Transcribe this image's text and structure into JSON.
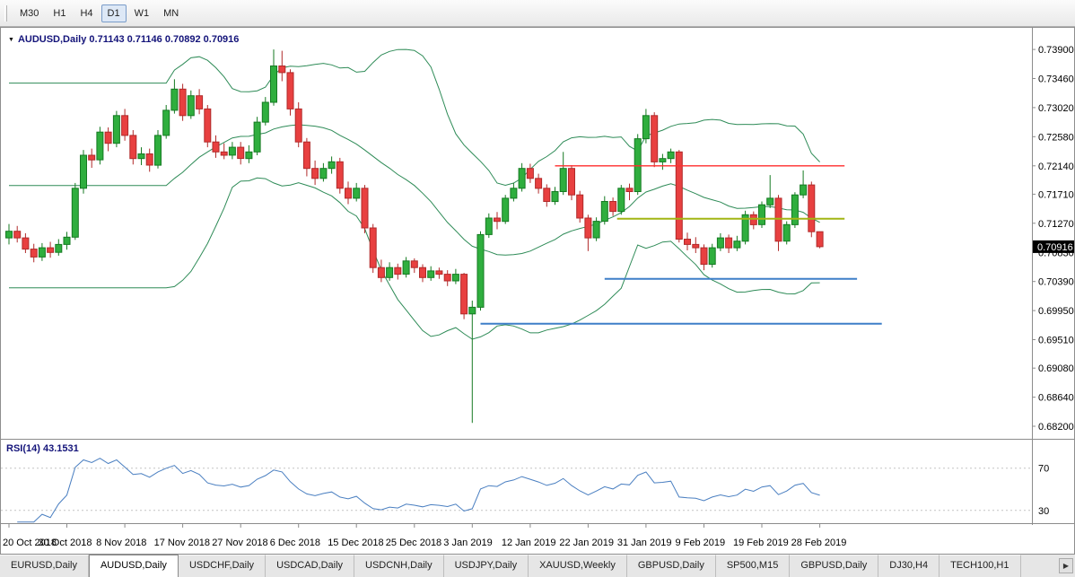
{
  "icons": {
    "chart_dropdown": "▼",
    "scroll_right": "▶"
  },
  "toolbar": {
    "timeframes": [
      {
        "label": "M30",
        "active": false
      },
      {
        "label": "H1",
        "active": false
      },
      {
        "label": "H4",
        "active": false
      },
      {
        "label": "D1",
        "active": true
      },
      {
        "label": "W1",
        "active": false
      },
      {
        "label": "MN",
        "active": false
      }
    ]
  },
  "chart_data": {
    "type": "candlestick",
    "title": "AUDUSD,Daily",
    "ohlc_readout": "0.71143 0.71146 0.70892 0.70916",
    "y_range": {
      "max": 0.742,
      "min": 0.6801
    },
    "y_ticks": [
      "0.73900",
      "0.73460",
      "0.73020",
      "0.72580",
      "0.72140",
      "0.71710",
      "0.71270",
      "0.70830",
      "0.70390",
      "0.69950",
      "0.69510",
      "0.69080",
      "0.68640",
      "0.68200"
    ],
    "x_labels": [
      {
        "i": 0,
        "label": "20 Oct 2018"
      },
      {
        "i": 7,
        "label": "30 Oct 2018"
      },
      {
        "i": 14,
        "label": "8 Nov 2018"
      },
      {
        "i": 21,
        "label": "17 Nov 2018"
      },
      {
        "i": 28,
        "label": "27 Nov 2018"
      },
      {
        "i": 35,
        "label": "6 Dec 2018"
      },
      {
        "i": 42,
        "label": "15 Dec 2018"
      },
      {
        "i": 49,
        "label": "25 Dec 2018"
      },
      {
        "i": 56,
        "label": "3 Jan 2019"
      },
      {
        "i": 63,
        "label": "12 Jan 2019"
      },
      {
        "i": 70,
        "label": "22 Jan 2019"
      },
      {
        "i": 77,
        "label": "31 Jan 2019"
      },
      {
        "i": 84,
        "label": "9 Feb 2019"
      },
      {
        "i": 91,
        "label": "19 Feb 2019"
      },
      {
        "i": 98,
        "label": "28 Feb 2019"
      }
    ],
    "candles": [
      [
        0.7105,
        0.7126,
        0.7095,
        0.7115
      ],
      [
        0.7115,
        0.7123,
        0.7098,
        0.7105
      ],
      [
        0.7105,
        0.7112,
        0.7082,
        0.7088
      ],
      [
        0.7088,
        0.7096,
        0.7068,
        0.7076
      ],
      [
        0.7076,
        0.7097,
        0.707,
        0.709
      ],
      [
        0.709,
        0.7099,
        0.7075,
        0.7083
      ],
      [
        0.7083,
        0.7103,
        0.7078,
        0.7095
      ],
      [
        0.7095,
        0.7114,
        0.7087,
        0.7106
      ],
      [
        0.7106,
        0.7188,
        0.7102,
        0.718
      ],
      [
        0.718,
        0.7238,
        0.7172,
        0.723
      ],
      [
        0.723,
        0.724,
        0.7211,
        0.7223
      ],
      [
        0.7223,
        0.7273,
        0.7216,
        0.7265
      ],
      [
        0.7265,
        0.7272,
        0.7236,
        0.7248
      ],
      [
        0.7248,
        0.7297,
        0.7242,
        0.729
      ],
      [
        0.729,
        0.73,
        0.7252,
        0.726
      ],
      [
        0.726,
        0.7268,
        0.7216,
        0.7225
      ],
      [
        0.7225,
        0.7242,
        0.7215,
        0.7232
      ],
      [
        0.7232,
        0.724,
        0.7205,
        0.7215
      ],
      [
        0.7215,
        0.7268,
        0.721,
        0.726
      ],
      [
        0.726,
        0.7306,
        0.7255,
        0.7298
      ],
      [
        0.7298,
        0.7345,
        0.7293,
        0.733
      ],
      [
        0.733,
        0.7338,
        0.7282,
        0.729
      ],
      [
        0.729,
        0.7328,
        0.7285,
        0.732
      ],
      [
        0.732,
        0.733,
        0.7292,
        0.73
      ],
      [
        0.73,
        0.7306,
        0.7242,
        0.725
      ],
      [
        0.725,
        0.726,
        0.7226,
        0.7235
      ],
      [
        0.7235,
        0.7248,
        0.7224,
        0.723
      ],
      [
        0.723,
        0.725,
        0.7224,
        0.7242
      ],
      [
        0.7242,
        0.725,
        0.7216,
        0.7225
      ],
      [
        0.7225,
        0.7245,
        0.7218,
        0.7235
      ],
      [
        0.7235,
        0.7288,
        0.723,
        0.728
      ],
      [
        0.728,
        0.7318,
        0.7275,
        0.731
      ],
      [
        0.731,
        0.739,
        0.7305,
        0.7365
      ],
      [
        0.7365,
        0.7388,
        0.7342,
        0.7355
      ],
      [
        0.7355,
        0.736,
        0.729,
        0.73
      ],
      [
        0.73,
        0.731,
        0.7242,
        0.725
      ],
      [
        0.725,
        0.7256,
        0.7198,
        0.721
      ],
      [
        0.721,
        0.7222,
        0.7185,
        0.7195
      ],
      [
        0.7195,
        0.7218,
        0.719,
        0.721
      ],
      [
        0.721,
        0.7228,
        0.7202,
        0.722
      ],
      [
        0.722,
        0.7226,
        0.7172,
        0.718
      ],
      [
        0.718,
        0.719,
        0.7156,
        0.7165
      ],
      [
        0.7165,
        0.7188,
        0.716,
        0.718
      ],
      [
        0.718,
        0.7185,
        0.7112,
        0.712
      ],
      [
        0.712,
        0.7126,
        0.7052,
        0.706
      ],
      [
        0.706,
        0.7072,
        0.7038,
        0.7045
      ],
      [
        0.7045,
        0.7068,
        0.704,
        0.706
      ],
      [
        0.706,
        0.7066,
        0.7042,
        0.705
      ],
      [
        0.705,
        0.7076,
        0.7045,
        0.707
      ],
      [
        0.707,
        0.7074,
        0.7052,
        0.706
      ],
      [
        0.706,
        0.7065,
        0.7038,
        0.7045
      ],
      [
        0.7045,
        0.7062,
        0.704,
        0.7055
      ],
      [
        0.7055,
        0.706,
        0.7043,
        0.705
      ],
      [
        0.705,
        0.7056,
        0.7032,
        0.704
      ],
      [
        0.704,
        0.7058,
        0.7035,
        0.705
      ],
      [
        0.705,
        0.7052,
        0.6982,
        0.699
      ],
      [
        0.699,
        0.701,
        0.6825,
        0.7
      ],
      [
        0.7,
        0.7115,
        0.6995,
        0.711
      ],
      [
        0.711,
        0.7142,
        0.7105,
        0.7135
      ],
      [
        0.7135,
        0.7144,
        0.7118,
        0.713
      ],
      [
        0.713,
        0.717,
        0.7126,
        0.7165
      ],
      [
        0.7165,
        0.7188,
        0.716,
        0.718
      ],
      [
        0.718,
        0.7218,
        0.7175,
        0.721
      ],
      [
        0.721,
        0.7217,
        0.7188,
        0.7195
      ],
      [
        0.7195,
        0.7202,
        0.7172,
        0.718
      ],
      [
        0.718,
        0.7186,
        0.7152,
        0.716
      ],
      [
        0.716,
        0.7182,
        0.7155,
        0.7175
      ],
      [
        0.7175,
        0.7235,
        0.717,
        0.721
      ],
      [
        0.721,
        0.7215,
        0.7162,
        0.717
      ],
      [
        0.717,
        0.7176,
        0.7128,
        0.7135
      ],
      [
        0.7135,
        0.714,
        0.7085,
        0.7105
      ],
      [
        0.7105,
        0.7136,
        0.71,
        0.713
      ],
      [
        0.713,
        0.7168,
        0.7125,
        0.716
      ],
      [
        0.716,
        0.7166,
        0.7138,
        0.7145
      ],
      [
        0.7145,
        0.7185,
        0.714,
        0.718
      ],
      [
        0.718,
        0.7187,
        0.7162,
        0.7175
      ],
      [
        0.7175,
        0.7262,
        0.717,
        0.7255
      ],
      [
        0.7255,
        0.73,
        0.7248,
        0.729
      ],
      [
        0.729,
        0.7295,
        0.7212,
        0.722
      ],
      [
        0.722,
        0.7232,
        0.7208,
        0.7225
      ],
      [
        0.7225,
        0.724,
        0.7218,
        0.7235
      ],
      [
        0.7235,
        0.7238,
        0.7098,
        0.7103
      ],
      [
        0.7103,
        0.7113,
        0.7086,
        0.7095
      ],
      [
        0.7095,
        0.7106,
        0.7082,
        0.709
      ],
      [
        0.709,
        0.7095,
        0.7056,
        0.7065
      ],
      [
        0.7065,
        0.7096,
        0.706,
        0.709
      ],
      [
        0.709,
        0.7112,
        0.7085,
        0.7105
      ],
      [
        0.7105,
        0.711,
        0.7082,
        0.709
      ],
      [
        0.709,
        0.7108,
        0.7085,
        0.71
      ],
      [
        0.71,
        0.7146,
        0.7095,
        0.714
      ],
      [
        0.714,
        0.7145,
        0.7118,
        0.7125
      ],
      [
        0.7125,
        0.716,
        0.712,
        0.7155
      ],
      [
        0.7155,
        0.72,
        0.715,
        0.7165
      ],
      [
        0.7165,
        0.717,
        0.7085,
        0.71
      ],
      [
        0.71,
        0.713,
        0.7095,
        0.7125
      ],
      [
        0.7125,
        0.7174,
        0.712,
        0.717
      ],
      [
        0.717,
        0.7207,
        0.7165,
        0.7185
      ],
      [
        0.7185,
        0.719,
        0.7106,
        0.71143
      ],
      [
        0.71143,
        0.71146,
        0.70892,
        0.70916
      ]
    ],
    "indicators": {
      "bollinger": {
        "period": 20,
        "deviation": 2
      },
      "rsi": {
        "label": "RSI(14) 43.1531",
        "period": 14,
        "levels": [
          70,
          30
        ],
        "color": "#4a7fc1",
        "range": {
          "max": 96,
          "min": 18
        }
      }
    },
    "objects": [
      {
        "type": "horizontal-line",
        "price": 0.7214,
        "x1": 66,
        "x2": 101,
        "color": "#ff2d2d",
        "width": 1.4
      },
      {
        "type": "horizontal-line",
        "price": 0.7134,
        "x1": 73.5,
        "x2": 101,
        "color": "#a2b514",
        "width": 2
      },
      {
        "type": "horizontal-line",
        "price": 0.7043,
        "x1": 72,
        "x2": 102.5,
        "color": "#3e7fc8",
        "width": 2
      },
      {
        "type": "horizontal-line",
        "price": 0.6975,
        "x1": 57,
        "x2": 105.5,
        "color": "#3e7fc8",
        "width": 2
      }
    ],
    "price_marker": {
      "label": "0.70916",
      "price": 0.70916
    },
    "colors": {
      "background": "#ffffff",
      "bull": {
        "fill": "#2fae3e",
        "stroke": "#157a22"
      },
      "bear": {
        "fill": "#e84040",
        "stroke": "#b02a2a"
      },
      "bollinger": "#2e8b57",
      "marker_bg": "#000000",
      "marker_fg": "#ffffff",
      "axis_text": "#000000"
    }
  },
  "tabs": {
    "items": [
      {
        "label": "EURUSD,Daily",
        "active": false
      },
      {
        "label": "AUDUSD,Daily",
        "active": true
      },
      {
        "label": "USDCHF,Daily",
        "active": false
      },
      {
        "label": "USDCAD,Daily",
        "active": false
      },
      {
        "label": "USDCNH,Daily",
        "active": false
      },
      {
        "label": "USDJPY,Daily",
        "active": false
      },
      {
        "label": "XAUUSD,Weekly",
        "active": false
      },
      {
        "label": "GBPUSD,Daily",
        "active": false
      },
      {
        "label": "SP500,M15",
        "active": false
      },
      {
        "label": "GBPUSD,Daily",
        "active": false
      },
      {
        "label": "DJ30,H4",
        "active": false
      },
      {
        "label": "TECH100,H1",
        "active": false
      }
    ]
  }
}
